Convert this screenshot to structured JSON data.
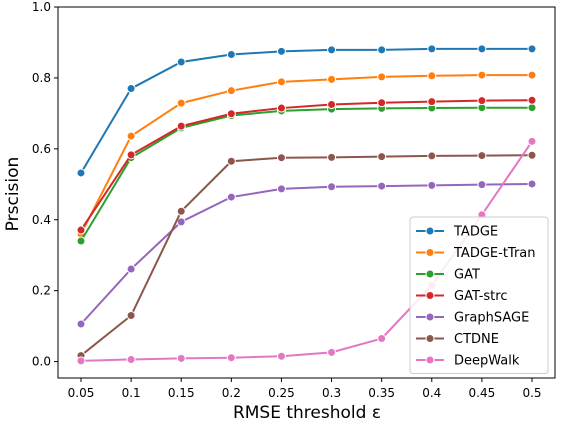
{
  "chart_data": {
    "type": "line",
    "title": "",
    "xlabel": "RMSE threshold ε",
    "ylabel": "Prscision",
    "x": [
      0.05,
      0.1,
      0.15,
      0.2,
      0.25,
      0.3,
      0.35,
      0.4,
      0.45,
      0.5
    ],
    "x_tick_labels": [
      "0.05",
      "0.1",
      "0.15",
      "0.2",
      "0.25",
      "0.3",
      "0.35",
      "0.4",
      "0.45",
      "0.5"
    ],
    "ylim": [
      0.0,
      1.0
    ],
    "y_ticks": [
      0.0,
      0.2,
      0.4,
      0.6,
      0.8,
      1.0
    ],
    "y_tick_labels": [
      "0.0",
      "0.2",
      "0.4",
      "0.6",
      "0.8",
      "1.0"
    ],
    "grid": false,
    "legend_position": "lower-right",
    "series": [
      {
        "name": "TADGE",
        "color": "#1f77b4",
        "values": [
          0.532,
          0.77,
          0.845,
          0.866,
          0.875,
          0.879,
          0.879,
          0.882,
          0.882,
          0.882
        ]
      },
      {
        "name": "TADGE-tTran",
        "color": "#ff7f0e",
        "values": [
          0.36,
          0.636,
          0.729,
          0.764,
          0.789,
          0.796,
          0.803,
          0.806,
          0.808,
          0.808
        ]
      },
      {
        "name": "GAT",
        "color": "#2ca02c",
        "values": [
          0.34,
          0.575,
          0.659,
          0.694,
          0.707,
          0.712,
          0.714,
          0.715,
          0.716,
          0.716
        ]
      },
      {
        "name": "GAT-strc",
        "color": "#d62728",
        "values": [
          0.371,
          0.583,
          0.664,
          0.699,
          0.715,
          0.725,
          0.73,
          0.733,
          0.736,
          0.737
        ]
      },
      {
        "name": "GraphSAGE",
        "color": "#9467bd",
        "values": [
          0.106,
          0.261,
          0.394,
          0.464,
          0.487,
          0.493,
          0.495,
          0.497,
          0.499,
          0.501
        ]
      },
      {
        "name": "CTDNE",
        "color": "#8c564b",
        "values": [
          0.017,
          0.13,
          0.424,
          0.565,
          0.575,
          0.576,
          0.578,
          0.58,
          0.581,
          0.582
        ]
      },
      {
        "name": "DeepWalk",
        "color": "#e377c2",
        "values": [
          0.002,
          0.006,
          0.009,
          0.011,
          0.015,
          0.026,
          0.065,
          0.215,
          0.414,
          0.621
        ]
      }
    ]
  }
}
